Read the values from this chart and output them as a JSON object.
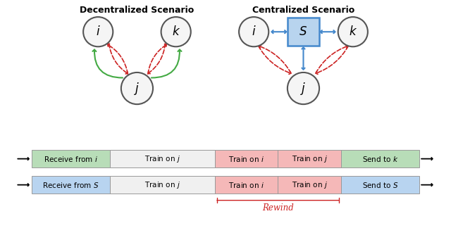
{
  "title_left": "Decentralized Scenario",
  "title_right": "Centralized Scenario",
  "colors": {
    "red_arrow": "#cc2222",
    "green_arrow": "#44aa44",
    "blue_arrow": "#4488cc",
    "S_box_fill": "#b8d4ee",
    "S_box_edge": "#4488cc",
    "node_fill": "#f5f5f5",
    "node_edge": "#555555"
  },
  "bar_sections": {
    "labels_row1": [
      "Receive from $i$",
      "Train on $j$",
      "Train on $i$",
      "Train on $j$",
      "Send to $k$"
    ],
    "labels_row2": [
      "Receive from $S$",
      "Train on $j$",
      "Train on $i$",
      "Train on $j$",
      "Send to $S$"
    ],
    "colors_row1": [
      "#b8ddb8",
      "#f0f0f0",
      "#f5b8b8",
      "#f5b8b8",
      "#b8ddb8"
    ],
    "colors_row2": [
      "#b8d4f0",
      "#f0f0f0",
      "#f5b8b8",
      "#f5b8b8",
      "#b8d4f0"
    ],
    "widths": [
      1.5,
      2.0,
      1.2,
      1.2,
      1.5
    ]
  },
  "rewind_label": "Rewind"
}
